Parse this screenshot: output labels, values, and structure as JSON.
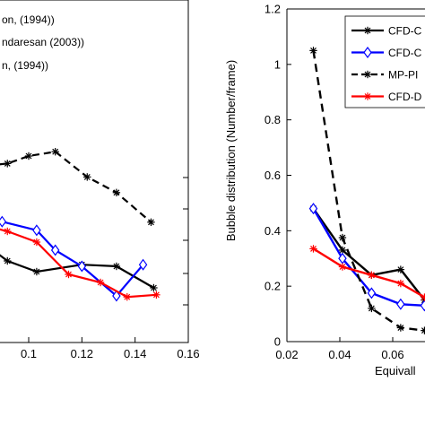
{
  "chart_data": [
    {
      "type": "line",
      "title": "",
      "xlabel": "",
      "ylabel": "",
      "xlim": [
        0.08,
        0.16
      ],
      "xticks": [
        "0.1",
        "0.12",
        "0.14",
        "0.16"
      ],
      "legend": [
        "on, (1994))",
        "ndaresan (2003))",
        "n, (1994))"
      ],
      "series": [
        {
          "color": "#000000",
          "style": "solid",
          "marker": "star",
          "points": [
            [
              0.08,
              0.29
            ],
            [
              0.092,
              0.245
            ],
            [
              0.103,
              0.225
            ],
            [
              0.12,
              0.238
            ],
            [
              0.133,
              0.235
            ],
            [
              0.147,
              0.195
            ]
          ]
        },
        {
          "color": "#0000ff",
          "style": "solid",
          "marker": "diamond",
          "points": [
            [
              0.08,
              0.335
            ],
            [
              0.09,
              0.318
            ],
            [
              0.103,
              0.302
            ],
            [
              0.11,
              0.265
            ],
            [
              0.12,
              0.235
            ],
            [
              0.133,
              0.18
            ],
            [
              0.143,
              0.238
            ]
          ]
        },
        {
          "color": "#000000",
          "style": "dashed",
          "marker": "star",
          "points": [
            [
              0.08,
              0.42
            ],
            [
              0.092,
              0.426
            ],
            [
              0.1,
              0.44
            ],
            [
              0.11,
              0.448
            ],
            [
              0.122,
              0.401
            ],
            [
              0.133,
              0.372
            ],
            [
              0.146,
              0.317
            ]
          ]
        },
        {
          "color": "#ff0000",
          "style": "solid",
          "marker": "star",
          "points": [
            [
              0.08,
              0.315
            ],
            [
              0.092,
              0.3
            ],
            [
              0.103,
              0.28
            ],
            [
              0.115,
              0.22
            ],
            [
              0.127,
              0.205
            ],
            [
              0.137,
              0.178
            ],
            [
              0.148,
              0.182
            ]
          ]
        }
      ]
    },
    {
      "type": "line",
      "title": "",
      "xlabel": "Equivall",
      "ylabel": "Bubble distribution (Number/frame)",
      "xlim": [
        0.02,
        0.075
      ],
      "ylim": [
        0,
        1.2
      ],
      "xticks": [
        "0.02",
        "0.04",
        "0.06"
      ],
      "yticks": [
        "0",
        "0.2",
        "0.4",
        "0.6",
        "0.8",
        "1",
        "1.2"
      ],
      "legend_position": "top-right",
      "series": [
        {
          "name": "CFD-C",
          "color": "#000000",
          "style": "solid",
          "marker": "star",
          "x": [
            0.03,
            0.041,
            0.052,
            0.063,
            0.072
          ],
          "y": [
            0.48,
            0.33,
            0.24,
            0.26,
            0.15
          ]
        },
        {
          "name": "CFD-C",
          "color": "#0000ff",
          "style": "solid",
          "marker": "diamond",
          "x": [
            0.03,
            0.041,
            0.052,
            0.063,
            0.072
          ],
          "y": [
            0.48,
            0.3,
            0.175,
            0.135,
            0.13
          ]
        },
        {
          "name": "MP-PI",
          "color": "#000000",
          "style": "dashed",
          "marker": "star",
          "x": [
            0.03,
            0.041,
            0.052,
            0.063,
            0.072
          ],
          "y": [
            1.05,
            0.375,
            0.12,
            0.05,
            0.04
          ]
        },
        {
          "name": "CFD-D",
          "color": "#ff0000",
          "style": "solid",
          "marker": "star",
          "x": [
            0.03,
            0.041,
            0.052,
            0.063,
            0.072
          ],
          "y": [
            0.335,
            0.27,
            0.24,
            0.21,
            0.16
          ]
        }
      ]
    }
  ]
}
